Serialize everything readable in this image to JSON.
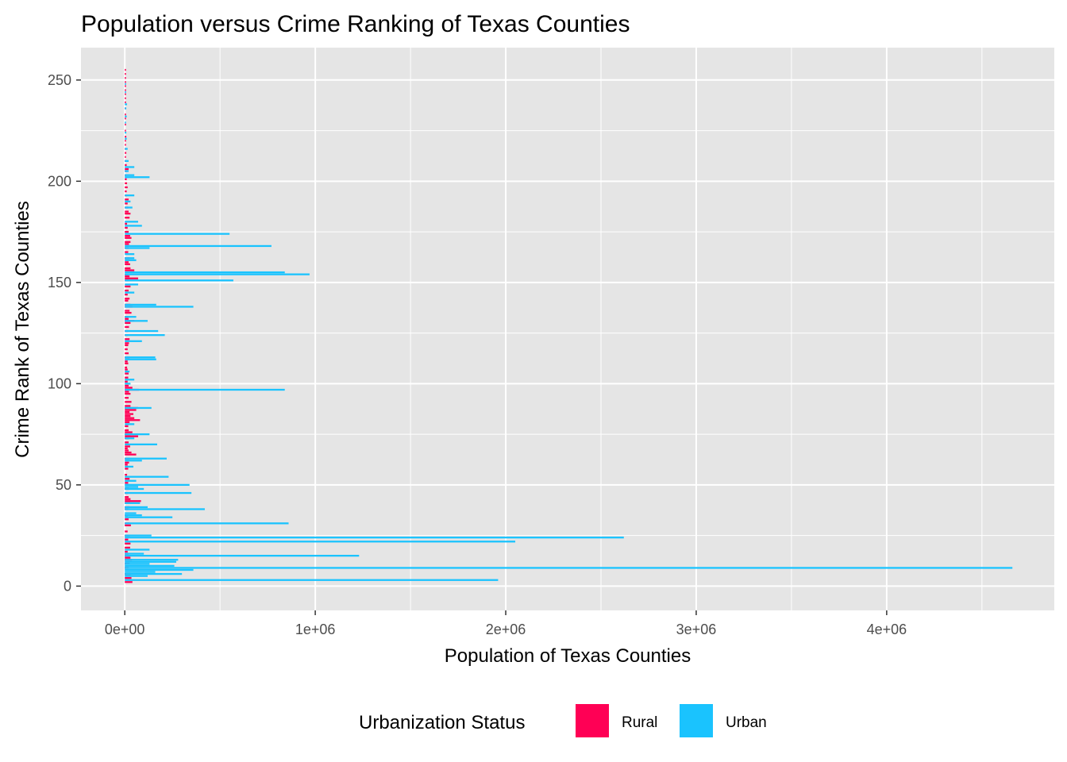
{
  "chart_data": {
    "type": "bar",
    "orientation": "horizontal",
    "title": "Population versus Crime Ranking of Texas Counties",
    "xlabel": "Population of Texas Counties",
    "ylabel": "Crime Rank of Texas Counties",
    "xlim": [
      -230000,
      4880000
    ],
    "ylim": [
      -12,
      266
    ],
    "x_ticks": [
      {
        "value": 0,
        "label": "0e+00"
      },
      {
        "value": 1000000,
        "label": "1e+06"
      },
      {
        "value": 2000000,
        "label": "2e+06"
      },
      {
        "value": 3000000,
        "label": "3e+06"
      },
      {
        "value": 4000000,
        "label": "4e+06"
      }
    ],
    "y_ticks": [
      {
        "value": 0,
        "label": "0"
      },
      {
        "value": 50,
        "label": "50"
      },
      {
        "value": 100,
        "label": "100"
      },
      {
        "value": 150,
        "label": "150"
      },
      {
        "value": 200,
        "label": "200"
      },
      {
        "value": 250,
        "label": "250"
      }
    ],
    "grid": true,
    "legend": {
      "title": "Urbanization Status",
      "position": "bottom",
      "entries": [
        {
          "name": "Rural",
          "color": "#ff0055"
        },
        {
          "name": "Urban",
          "color": "#1ac3fe"
        }
      ]
    },
    "series": [
      {
        "name": "Rural",
        "color": "#ff0055",
        "points": [
          [
            2,
            40000
          ],
          [
            4,
            35000
          ],
          [
            6,
            30000
          ],
          [
            9,
            20000
          ],
          [
            11,
            25000
          ],
          [
            13,
            38000
          ],
          [
            14,
            30000
          ],
          [
            15,
            25000
          ],
          [
            16,
            20000
          ],
          [
            17,
            15000
          ],
          [
            19,
            28000
          ],
          [
            21,
            30000
          ],
          [
            23,
            18000
          ],
          [
            25,
            26000
          ],
          [
            27,
            15000
          ],
          [
            30,
            32000
          ],
          [
            31,
            25000
          ],
          [
            33,
            20000
          ],
          [
            35,
            15000
          ],
          [
            38,
            18000
          ],
          [
            39,
            25000
          ],
          [
            41,
            28000
          ],
          [
            42,
            85000
          ],
          [
            43,
            30000
          ],
          [
            44,
            20000
          ],
          [
            46,
            15000
          ],
          [
            48,
            22000
          ],
          [
            51,
            18000
          ],
          [
            53,
            25000
          ],
          [
            55,
            12000
          ],
          [
            58,
            18000
          ],
          [
            60,
            15000
          ],
          [
            61,
            22000
          ],
          [
            63,
            25000
          ],
          [
            65,
            60000
          ],
          [
            66,
            35000
          ],
          [
            67,
            20000
          ],
          [
            68,
            15000
          ],
          [
            69,
            28000
          ],
          [
            71,
            20000
          ],
          [
            73,
            22000
          ],
          [
            74,
            70000
          ],
          [
            75,
            30000
          ],
          [
            76,
            40000
          ],
          [
            77,
            20000
          ],
          [
            79,
            18000
          ],
          [
            81,
            25000
          ],
          [
            82,
            80000
          ],
          [
            83,
            50000
          ],
          [
            84,
            30000
          ],
          [
            85,
            45000
          ],
          [
            86,
            25000
          ],
          [
            87,
            60000
          ],
          [
            88,
            70000
          ],
          [
            89,
            30000
          ],
          [
            91,
            35000
          ],
          [
            93,
            20000
          ],
          [
            95,
            30000
          ],
          [
            96,
            22000
          ],
          [
            97,
            75000
          ],
          [
            98,
            40000
          ],
          [
            99,
            20000
          ],
          [
            101,
            15000
          ],
          [
            103,
            18000
          ],
          [
            105,
            20000
          ],
          [
            107,
            15000
          ],
          [
            108,
            12000
          ],
          [
            110,
            18000
          ],
          [
            111,
            15000
          ],
          [
            113,
            25000
          ],
          [
            115,
            20000
          ],
          [
            117,
            15000
          ],
          [
            119,
            18000
          ],
          [
            120,
            22000
          ],
          [
            122,
            25000
          ],
          [
            124,
            15000
          ],
          [
            126,
            18000
          ],
          [
            128,
            22000
          ],
          [
            130,
            30000
          ],
          [
            131,
            50000
          ],
          [
            132,
            20000
          ],
          [
            133,
            15000
          ],
          [
            135,
            35000
          ],
          [
            136,
            25000
          ],
          [
            138,
            40000
          ],
          [
            139,
            30000
          ],
          [
            141,
            18000
          ],
          [
            142,
            25000
          ],
          [
            144,
            15000
          ],
          [
            146,
            20000
          ],
          [
            148,
            30000
          ],
          [
            151,
            22000
          ],
          [
            152,
            70000
          ],
          [
            153,
            25000
          ],
          [
            154,
            18000
          ],
          [
            156,
            50000
          ],
          [
            157,
            30000
          ],
          [
            159,
            28000
          ],
          [
            160,
            20000
          ],
          [
            162,
            25000
          ],
          [
            165,
            18000
          ],
          [
            167,
            20000
          ],
          [
            169,
            22000
          ],
          [
            170,
            30000
          ],
          [
            172,
            35000
          ],
          [
            173,
            28000
          ],
          [
            175,
            20000
          ],
          [
            177,
            15000
          ],
          [
            179,
            12000
          ],
          [
            182,
            25000
          ],
          [
            184,
            30000
          ],
          [
            185,
            20000
          ],
          [
            187,
            18000
          ],
          [
            189,
            15000
          ],
          [
            191,
            20000
          ],
          [
            193,
            12000
          ],
          [
            195,
            10000
          ],
          [
            197,
            15000
          ],
          [
            199,
            12000
          ],
          [
            201,
            10000
          ],
          [
            203,
            8000
          ],
          [
            205,
            12000
          ],
          [
            206,
            20000
          ],
          [
            208,
            10000
          ],
          [
            210,
            8000
          ],
          [
            212,
            6000
          ],
          [
            214,
            8000
          ],
          [
            216,
            5000
          ],
          [
            218,
            6000
          ],
          [
            220,
            5000
          ],
          [
            222,
            8000
          ],
          [
            225,
            4000
          ],
          [
            228,
            6000
          ],
          [
            231,
            5000
          ],
          [
            233,
            4000
          ],
          [
            236,
            6000
          ],
          [
            239,
            5000
          ],
          [
            241,
            4000
          ],
          [
            243,
            5000
          ],
          [
            245,
            4000
          ],
          [
            247,
            6000
          ],
          [
            249,
            5000
          ],
          [
            251,
            4000
          ],
          [
            253,
            3000
          ],
          [
            255,
            3000
          ]
        ]
      },
      {
        "name": "Urban",
        "color": "#1ac3fe",
        "points": [
          [
            3,
            1960000
          ],
          [
            5,
            120000
          ],
          [
            6,
            300000
          ],
          [
            7,
            160000
          ],
          [
            8,
            360000
          ],
          [
            9,
            4660000
          ],
          [
            10,
            260000
          ],
          [
            11,
            130000
          ],
          [
            12,
            270000
          ],
          [
            13,
            280000
          ],
          [
            15,
            1230000
          ],
          [
            16,
            100000
          ],
          [
            18,
            130000
          ],
          [
            22,
            2050000
          ],
          [
            24,
            2620000
          ],
          [
            25,
            140000
          ],
          [
            31,
            860000
          ],
          [
            34,
            250000
          ],
          [
            35,
            90000
          ],
          [
            36,
            60000
          ],
          [
            38,
            420000
          ],
          [
            39,
            120000
          ],
          [
            41,
            80000
          ],
          [
            46,
            350000
          ],
          [
            48,
            100000
          ],
          [
            49,
            70000
          ],
          [
            50,
            340000
          ],
          [
            52,
            60000
          ],
          [
            54,
            230000
          ],
          [
            59,
            45000
          ],
          [
            62,
            90000
          ],
          [
            63,
            220000
          ],
          [
            70,
            170000
          ],
          [
            73,
            50000
          ],
          [
            75,
            130000
          ],
          [
            80,
            50000
          ],
          [
            88,
            140000
          ],
          [
            97,
            840000
          ],
          [
            100,
            30000
          ],
          [
            102,
            50000
          ],
          [
            106,
            25000
          ],
          [
            112,
            165000
          ],
          [
            113,
            160000
          ],
          [
            121,
            90000
          ],
          [
            124,
            210000
          ],
          [
            126,
            175000
          ],
          [
            131,
            120000
          ],
          [
            133,
            60000
          ],
          [
            138,
            360000
          ],
          [
            139,
            165000
          ],
          [
            145,
            50000
          ],
          [
            149,
            70000
          ],
          [
            151,
            570000
          ],
          [
            154,
            970000
          ],
          [
            155,
            840000
          ],
          [
            161,
            60000
          ],
          [
            162,
            50000
          ],
          [
            164,
            50000
          ],
          [
            167,
            130000
          ],
          [
            168,
            770000
          ],
          [
            174,
            550000
          ],
          [
            178,
            90000
          ],
          [
            180,
            70000
          ],
          [
            187,
            40000
          ],
          [
            190,
            30000
          ],
          [
            193,
            50000
          ],
          [
            202,
            130000
          ],
          [
            203,
            50000
          ],
          [
            205,
            20000
          ],
          [
            207,
            50000
          ],
          [
            210,
            20000
          ],
          [
            216,
            15000
          ],
          [
            221,
            10000
          ],
          [
            224,
            8000
          ],
          [
            229,
            5000
          ],
          [
            232,
            10000
          ],
          [
            236,
            8000
          ],
          [
            238,
            12000
          ],
          [
            244,
            6000
          ],
          [
            248,
            5000
          ]
        ]
      }
    ]
  }
}
